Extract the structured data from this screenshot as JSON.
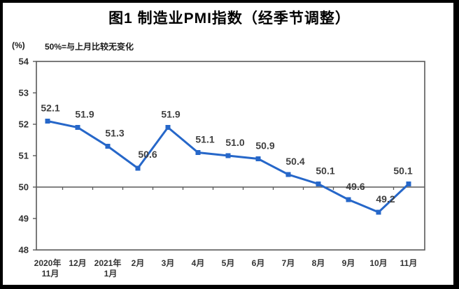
{
  "page": {
    "background_color": "#ffffff",
    "frame_color": "#000000"
  },
  "chart": {
    "title": "图1 制造业PMI指数（经季节调整）",
    "unit_label": "(%)",
    "note": "50%=与上月比较无变化"
  },
  "chart_data": {
    "type": "line",
    "title": "图1 制造业PMI指数（经季节调整）",
    "ylabel": "(%)",
    "annotation": "50%=与上月比较无变化",
    "categories": [
      "2020年11月",
      "12月",
      "2021年1月",
      "2月",
      "3月",
      "4月",
      "5月",
      "6月",
      "7月",
      "8月",
      "9月",
      "10月",
      "11月"
    ],
    "category_label_lines": [
      [
        "2020年",
        "11月"
      ],
      [
        "12月"
      ],
      [
        "2021年",
        "1月"
      ],
      [
        "2月"
      ],
      [
        "3月"
      ],
      [
        "4月"
      ],
      [
        "5月"
      ],
      [
        "6月"
      ],
      [
        "7月"
      ],
      [
        "8月"
      ],
      [
        "9月"
      ],
      [
        "10月"
      ],
      [
        "11月"
      ]
    ],
    "series": [
      {
        "name": "制造业PMI指数",
        "values": [
          52.1,
          51.9,
          51.3,
          50.6,
          51.9,
          51.1,
          51.0,
          50.9,
          50.4,
          50.1,
          49.6,
          49.2,
          50.1
        ]
      }
    ],
    "data_labels": [
      "52.1",
      "51.9",
      "51.3",
      "50.6",
      "51.9",
      "51.1",
      "51.0",
      "50.9",
      "50.4",
      "50.1",
      "49.6",
      "49.2",
      "50.1"
    ],
    "ylim": [
      48,
      54
    ],
    "yticks": [
      54,
      53,
      52,
      51,
      50,
      49,
      48
    ],
    "reference_line": 50,
    "grid": false,
    "legend": "none",
    "marker": "square",
    "colors": {
      "line": "#2667C9",
      "axis": "#595959",
      "tick_label": "#333333",
      "data_label": "#404040"
    },
    "label_offsets": {
      "default": [
        10,
        -14
      ],
      "0": [
        4,
        -14
      ],
      "3": [
        14,
        -15
      ],
      "4": [
        4,
        -14
      ],
      "12": [
        -8,
        -14
      ]
    }
  }
}
